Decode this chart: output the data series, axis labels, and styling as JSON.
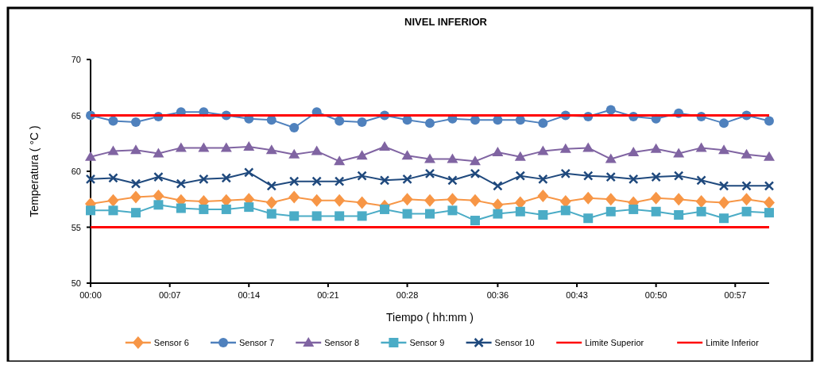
{
  "chart_data": {
    "type": "line",
    "title": "NIVEL INFERIOR",
    "xlabel": "Tiempo ( hh:mm )",
    "ylabel": "Temperatura ( °C )",
    "x": [
      0,
      0.0333,
      0.0667,
      0.1,
      0.1333,
      0.1667,
      0.2,
      0.2333,
      0.2667,
      0.3,
      0.3333,
      0.3667,
      0.4,
      0.4333,
      0.4667,
      0.5,
      0.5333,
      0.5667,
      0.6,
      0.6333,
      0.6667,
      0.7,
      0.7333,
      0.7667,
      0.8,
      0.8333,
      0.8667,
      0.9,
      0.9333,
      0.9667,
      1
    ],
    "xlim": [
      0,
      1
    ],
    "xticks": [
      {
        "value": 0,
        "label": "00:00"
      },
      {
        "value": 0.1167,
        "label": "00:07"
      },
      {
        "value": 0.2333,
        "label": "00:14"
      },
      {
        "value": 0.35,
        "label": "00:21"
      },
      {
        "value": 0.4667,
        "label": "00:28"
      },
      {
        "value": 0.6,
        "label": "00:36"
      },
      {
        "value": 0.7167,
        "label": "00:43"
      },
      {
        "value": 0.8333,
        "label": "00:50"
      },
      {
        "value": 0.95,
        "label": "00:57"
      }
    ],
    "ylim": [
      50,
      70
    ],
    "yticks": [
      50,
      55,
      60,
      65,
      70
    ],
    "grid": false,
    "legend": "bottom",
    "series": [
      {
        "name": "Sensor 6",
        "color": "#f79646",
        "marker": "diamond",
        "values": [
          57.1,
          57.4,
          57.7,
          57.8,
          57.4,
          57.3,
          57.4,
          57.5,
          57.2,
          57.7,
          57.4,
          57.4,
          57.2,
          56.9,
          57.5,
          57.4,
          57.5,
          57.4,
          57.0,
          57.2,
          57.8,
          57.3,
          57.6,
          57.5,
          57.2,
          57.6,
          57.5,
          57.3,
          57.2,
          57.5,
          57.2
        ]
      },
      {
        "name": "Sensor 7",
        "color": "#4f81bd",
        "marker": "circle",
        "values": [
          65.0,
          64.5,
          64.4,
          64.9,
          65.3,
          65.3,
          65.0,
          64.7,
          64.6,
          63.9,
          65.3,
          64.5,
          64.4,
          65.0,
          64.6,
          64.3,
          64.7,
          64.6,
          64.6,
          64.6,
          64.3,
          65.0,
          64.9,
          65.5,
          64.9,
          64.7,
          65.2,
          64.9,
          64.3,
          65.0,
          64.5
        ]
      },
      {
        "name": "Sensor 8",
        "color": "#8064a2",
        "marker": "triangle",
        "values": [
          61.3,
          61.8,
          61.9,
          61.6,
          62.1,
          62.1,
          62.1,
          62.2,
          61.9,
          61.5,
          61.8,
          60.9,
          61.4,
          62.2,
          61.4,
          61.1,
          61.1,
          60.9,
          61.7,
          61.3,
          61.8,
          62.0,
          62.1,
          61.1,
          61.7,
          62.0,
          61.6,
          62.1,
          61.9,
          61.5,
          61.3
        ]
      },
      {
        "name": "Sensor 9",
        "color": "#4bacc6",
        "marker": "square",
        "values": [
          56.5,
          56.5,
          56.3,
          57.0,
          56.7,
          56.6,
          56.6,
          56.8,
          56.2,
          56.0,
          56.0,
          56.0,
          56.0,
          56.6,
          56.2,
          56.2,
          56.5,
          55.6,
          56.2,
          56.4,
          56.1,
          56.5,
          55.8,
          56.4,
          56.6,
          56.4,
          56.1,
          56.4,
          55.8,
          56.4,
          56.3
        ]
      },
      {
        "name": "Sensor 10",
        "color": "#1f497d",
        "marker": "cross",
        "values": [
          59.3,
          59.4,
          58.9,
          59.5,
          58.9,
          59.3,
          59.4,
          59.9,
          58.7,
          59.1,
          59.1,
          59.1,
          59.6,
          59.2,
          59.3,
          59.8,
          59.2,
          59.8,
          58.7,
          59.6,
          59.3,
          59.8,
          59.6,
          59.5,
          59.3,
          59.5,
          59.6,
          59.2,
          58.7,
          58.7,
          58.7
        ]
      },
      {
        "name": "Limite Superior",
        "color": "#ff0000",
        "marker": "none",
        "values": [
          65,
          65,
          65,
          65,
          65,
          65,
          65,
          65,
          65,
          65,
          65,
          65,
          65,
          65,
          65,
          65,
          65,
          65,
          65,
          65,
          65,
          65,
          65,
          65,
          65,
          65,
          65,
          65,
          65,
          65,
          65
        ]
      },
      {
        "name": "Limite Inferior",
        "color": "#ff0000",
        "marker": "none",
        "values": [
          55,
          55,
          55,
          55,
          55,
          55,
          55,
          55,
          55,
          55,
          55,
          55,
          55,
          55,
          55,
          55,
          55,
          55,
          55,
          55,
          55,
          55,
          55,
          55,
          55,
          55,
          55,
          55,
          55,
          55,
          55
        ]
      }
    ]
  }
}
